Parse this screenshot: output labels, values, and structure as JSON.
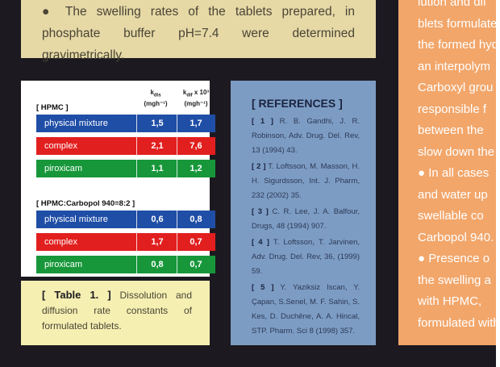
{
  "top_box": {
    "text": "● The swelling rates of the tablets prepared, in phosphate buffer pH=7.4 were determined gravimetrically."
  },
  "table": {
    "headers": [
      {
        "main": "k",
        "sub": "dis",
        "unit": "(mgh⁻¹)"
      },
      {
        "main": "k",
        "sub": "dif",
        "extra": " x 10³",
        "unit": "(mgh⁻¹)"
      }
    ],
    "groups": [
      {
        "title": "[ HPMC ]",
        "rows": [
          [
            "physical mixture",
            "1,5",
            "1,7"
          ],
          [
            "complex",
            "2,1",
            "7,6"
          ],
          [
            "piroxicam",
            "1,1",
            "1,2"
          ]
        ]
      },
      {
        "title": "[ HPMC:Carbopol 940=8:2 ]",
        "rows": [
          [
            "physical mixture",
            "0,6",
            "0,8"
          ],
          [
            "complex",
            "1,7",
            "0,7"
          ],
          [
            "piroxicam",
            "0,8",
            "0,7"
          ]
        ]
      }
    ]
  },
  "caption": {
    "label": "[ Table 1. ]",
    "text": "Dissolution and diffusion rate constants of formulated tablets."
  },
  "references": {
    "title": "[ REFERENCES ]",
    "items": [
      {
        "num": "[ 1 ]",
        "text": "R. B. Gandhi, J. R. Robinson, Adv. Drug. Del. Rev, 13 (1994) 43."
      },
      {
        "num": "[ 2 ]",
        "text": "T. Loftsson, M. Masson, H. H. Sigurdsson, Int. J. Pharm, 232 (2002) 35."
      },
      {
        "num": "[ 3 ]",
        "text": "C. R. Lee, J. A. Balfour, Drugs, 48 (1994) 907."
      },
      {
        "num": "[ 4 ]",
        "text": "T. Loftsson, T. Jarvinen, Adv. Drug. Del. Rev, 36, (1999) 59."
      },
      {
        "num": "[ 5 ]",
        "text": "Y. Yaziksiz Iscan, Y. Çapan, S.Senel, M. F. Sahin, S. Kes, D. Duchêne, A. A. Hincal, STP. Pharm. Sci 8 (1998) 357."
      }
    ]
  },
  "right_box": {
    "lines": [
      "lution and dif",
      "blets formulate",
      "the formed hyd",
      "an interpolym",
      "Carboxyl grou",
      "responsible f",
      "between the",
      "slow down the",
      "● In all cases",
      "and water up",
      "swellable co",
      "Carbopol 940.",
      "● Presence o",
      "the swelling a",
      "with HPMC,",
      "formulated with"
    ]
  }
}
